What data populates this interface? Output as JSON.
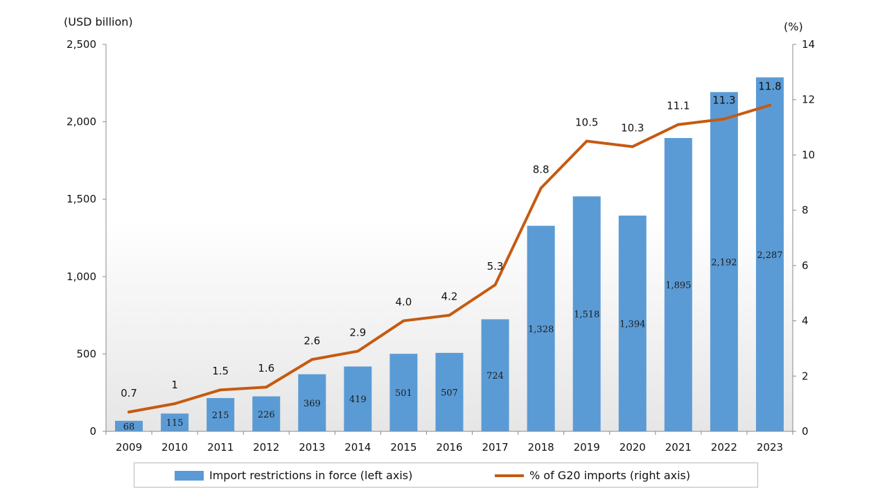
{
  "chart_data": {
    "type": "bar+line",
    "categories": [
      "2009",
      "2010",
      "2011",
      "2012",
      "2013",
      "2014",
      "2015",
      "2016",
      "2017",
      "2018",
      "2019",
      "2020",
      "2021",
      "2022",
      "2023"
    ],
    "series": [
      {
        "name": "Import restrictions in force (left axis)",
        "type": "bar",
        "axis": "left",
        "values": [
          68,
          115,
          215,
          226,
          369,
          419,
          501,
          507,
          724,
          1328,
          1518,
          1394,
          1895,
          2192,
          2287
        ],
        "labels": [
          "68",
          "115",
          "215",
          "226",
          "369",
          "419",
          "501",
          "507",
          "724",
          "1,328",
          "1,518",
          "1,394",
          "1,895",
          "2,192",
          "2,287"
        ],
        "color": "#5b9bd5"
      },
      {
        "name": "% of G20 imports (right axis)",
        "type": "line",
        "axis": "right",
        "values": [
          0.7,
          1,
          1.5,
          1.6,
          2.6,
          2.9,
          4.0,
          4.2,
          5.3,
          8.8,
          10.5,
          10.3,
          11.1,
          11.3,
          11.8
        ],
        "labels": [
          "0.7",
          "1",
          "1.5",
          "1.6",
          "2.6",
          "2.9",
          "4.0",
          "4.2",
          "5.3",
          "8.8",
          "10.5",
          "10.3",
          "11.1",
          "11.3",
          "11.8"
        ],
        "color": "#c55a11"
      }
    ],
    "y_left": {
      "label": "(USD billion)",
      "min": 0,
      "max": 2500,
      "ticks": [
        0,
        500,
        1000,
        1500,
        2000,
        2500
      ],
      "tick_labels": [
        "0",
        "500",
        "1,000",
        "1,500",
        "2,000",
        "2,500"
      ]
    },
    "y_right": {
      "label": "(%)",
      "min": 0,
      "max": 14,
      "ticks": [
        0,
        2,
        4,
        6,
        8,
        10,
        12,
        14
      ],
      "tick_labels": [
        "0",
        "2",
        "4",
        "6",
        "8",
        "10",
        "12",
        "14"
      ]
    },
    "legend_position": "bottom",
    "grid": false
  }
}
